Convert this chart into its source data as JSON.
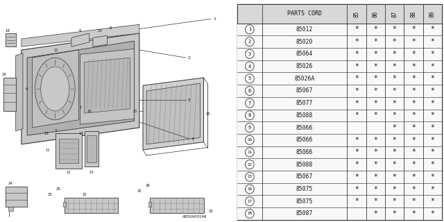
{
  "title": "A850A00146",
  "table_header": "PARTS CORD",
  "col_headers": [
    "85",
    "86",
    "87",
    "88",
    "89"
  ],
  "rows": [
    {
      "num": 1,
      "code": "85012",
      "marks": [
        1,
        1,
        1,
        1,
        1
      ]
    },
    {
      "num": 2,
      "code": "85020",
      "marks": [
        1,
        1,
        1,
        1,
        1
      ]
    },
    {
      "num": 3,
      "code": "85064",
      "marks": [
        1,
        1,
        1,
        1,
        1
      ]
    },
    {
      "num": 4,
      "code": "85026",
      "marks": [
        1,
        1,
        1,
        1,
        1
      ]
    },
    {
      "num": 5,
      "code": "85026A",
      "marks": [
        1,
        1,
        1,
        1,
        1
      ]
    },
    {
      "num": 6,
      "code": "85067",
      "marks": [
        1,
        1,
        1,
        1,
        1
      ]
    },
    {
      "num": 7,
      "code": "85077",
      "marks": [
        1,
        1,
        1,
        1,
        1
      ]
    },
    {
      "num": 8,
      "code": "85088",
      "marks": [
        1,
        1,
        1,
        1,
        1
      ]
    },
    {
      "num": 9,
      "code": "85066",
      "marks": [
        0,
        0,
        1,
        1,
        1
      ]
    },
    {
      "num": 10,
      "code": "85066",
      "marks": [
        1,
        1,
        1,
        1,
        1
      ]
    },
    {
      "num": 11,
      "code": "85066",
      "marks": [
        1,
        1,
        1,
        1,
        1
      ]
    },
    {
      "num": 12,
      "code": "85088",
      "marks": [
        1,
        1,
        1,
        1,
        1
      ]
    },
    {
      "num": 13,
      "code": "85067",
      "marks": [
        1,
        1,
        1,
        1,
        1
      ]
    },
    {
      "num": 16,
      "code": "85075",
      "marks": [
        1,
        1,
        1,
        1,
        1
      ]
    },
    {
      "num": 17,
      "code": "85075",
      "marks": [
        1,
        1,
        1,
        1,
        1
      ]
    },
    {
      "num": 18,
      "code": "85087",
      "marks": [
        0,
        1,
        1,
        1,
        1
      ]
    }
  ],
  "bg_color": "#ffffff",
  "table_bg": "#e8e8e8",
  "line_color": "#333333",
  "text_color": "#111111",
  "mark_symbol": "*"
}
